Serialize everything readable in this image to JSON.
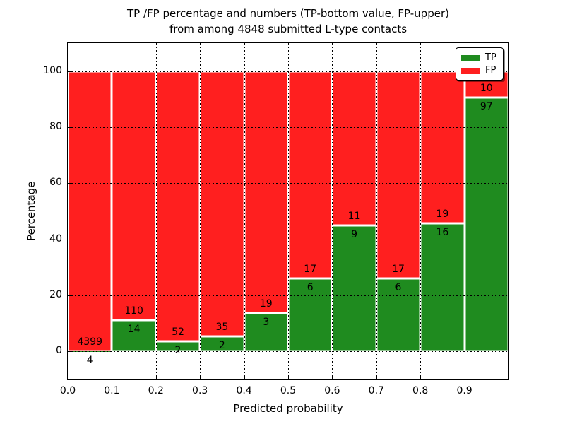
{
  "title": {
    "line1": "TP /FP percentage and numbers (TP-bottom value, FP-upper)",
    "line2": "from among 4848 submitted L-type contacts"
  },
  "axes": {
    "xlabel": "Predicted probability",
    "ylabel": "Percentage",
    "x_tick_labels": [
      "0.0",
      "0.1",
      "0.2",
      "0.3",
      "0.4",
      "0.5",
      "0.6",
      "0.7",
      "0.8",
      "0.9"
    ],
    "y_tick_labels": [
      "0",
      "20",
      "40",
      "60",
      "80",
      "100"
    ],
    "y_tick_values": [
      0,
      20,
      40,
      60,
      80,
      100
    ],
    "xlim": [
      0.0,
      1.0
    ],
    "ylim": [
      -10,
      110
    ],
    "grid_style": "dotted"
  },
  "legend": {
    "position": "upper right",
    "entries": [
      {
        "label": "TP",
        "color": "#1f8b1f"
      },
      {
        "label": "FP",
        "color": "#ff1f1f"
      }
    ]
  },
  "chart_data": {
    "type": "bar",
    "stacked": true,
    "normalized_to_percent": true,
    "title": "TP /FP percentage and numbers (TP-bottom value, FP-upper) from among 4848 submitted L-type contacts",
    "xlabel": "Predicted probability",
    "ylabel": "Percentage",
    "bin_width": 0.1,
    "bin_starts": [
      0.0,
      0.1,
      0.2,
      0.3,
      0.4,
      0.5,
      0.6,
      0.7,
      0.8,
      0.9
    ],
    "series": [
      {
        "name": "TP",
        "color": "#1f8b1f",
        "counts": [
          4,
          14,
          2,
          2,
          3,
          6,
          9,
          6,
          16,
          97
        ]
      },
      {
        "name": "FP",
        "color": "#ff1f1f",
        "counts": [
          4399,
          110,
          52,
          35,
          19,
          17,
          11,
          17,
          19,
          10
        ]
      }
    ],
    "total_contacts": 4848,
    "bar_edge_color": "#ffffff",
    "ylim": [
      -10,
      110
    ],
    "grid": true
  }
}
